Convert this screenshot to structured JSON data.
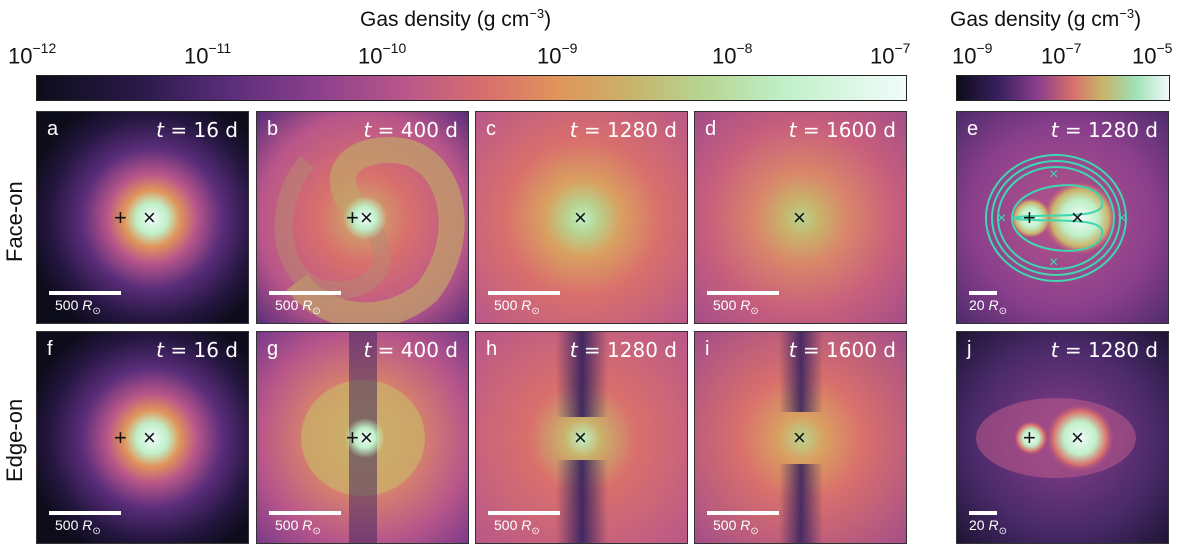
{
  "colorbar_left": {
    "title_prefix": "Gas density (g cm",
    "title_exp": "−3",
    "title_suffix": ")",
    "ticks": [
      {
        "base": "10",
        "exp": "−12"
      },
      {
        "base": "10",
        "exp": "−11"
      },
      {
        "base": "10",
        "exp": "−10"
      },
      {
        "base": "10",
        "exp": "−9"
      },
      {
        "base": "10",
        "exp": "−8"
      },
      {
        "base": "10",
        "exp": "−7"
      }
    ]
  },
  "colorbar_right": {
    "title_prefix": "Gas density (g cm",
    "title_exp": "−3",
    "title_suffix": ")",
    "ticks": [
      {
        "base": "10",
        "exp": "−9"
      },
      {
        "base": "10",
        "exp": "−7"
      },
      {
        "base": "10",
        "exp": "−5"
      }
    ]
  },
  "row_labels": {
    "face_on": "Face-on",
    "edge_on": "Edge-on"
  },
  "panels": {
    "a": {
      "label": "a",
      "t_var": "t",
      "t_val": " = 16  d",
      "scale": "500 ",
      "scale_unit": "R",
      "scale_sub": "⊙"
    },
    "b": {
      "label": "b",
      "t_var": "t",
      "t_val": " = 400  d",
      "scale": "500 ",
      "scale_unit": "R",
      "scale_sub": "⊙"
    },
    "c": {
      "label": "c",
      "t_var": "t",
      "t_val": " = 1280  d",
      "scale": "500 ",
      "scale_unit": "R",
      "scale_sub": "⊙"
    },
    "d": {
      "label": "d",
      "t_var": "t",
      "t_val": " = 1600  d",
      "scale": "500 ",
      "scale_unit": "R",
      "scale_sub": "⊙"
    },
    "e": {
      "label": "e",
      "t_var": "t",
      "t_val": " = 1280  d",
      "scale": "20 ",
      "scale_unit": "R",
      "scale_sub": "⊙"
    },
    "f": {
      "label": "f",
      "t_var": "t",
      "t_val": " = 16  d",
      "scale": "500 ",
      "scale_unit": "R",
      "scale_sub": "⊙"
    },
    "g": {
      "label": "g",
      "t_var": "t",
      "t_val": " = 400  d",
      "scale": "500 ",
      "scale_unit": "R",
      "scale_sub": "⊙"
    },
    "h": {
      "label": "h",
      "t_var": "t",
      "t_val": " = 1280  d",
      "scale": "500 ",
      "scale_unit": "R",
      "scale_sub": "⊙"
    },
    "i": {
      "label": "i",
      "t_var": "t",
      "t_val": " = 1600  d",
      "scale": "500 ",
      "scale_unit": "R",
      "scale_sub": "⊙"
    },
    "j": {
      "label": "j",
      "t_var": "t",
      "t_val": " = 1280  d",
      "scale": "20 ",
      "scale_unit": "R",
      "scale_sub": "⊙"
    }
  },
  "colors": {
    "cmap": [
      "#0d0c1a",
      "#2a1a4a",
      "#5a2d7a",
      "#8a3f8c",
      "#b8568a",
      "#d9706c",
      "#e0955a",
      "#c9b26a",
      "#b7d38f",
      "#bff0c8",
      "#f2fbfb"
    ],
    "contour": "#3fd6b0"
  }
}
